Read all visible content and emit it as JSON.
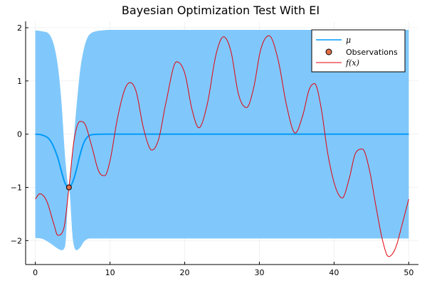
{
  "chart_data": {
    "type": "line",
    "title": "Bayesian Optimization Test With EI",
    "xlabel": "",
    "ylabel": "",
    "xlim": [
      -1.3,
      51.3
    ],
    "ylim": [
      -2.45,
      2.12
    ],
    "x_ticks": [
      0,
      10,
      20,
      30,
      40,
      50
    ],
    "x_tick_labels": [
      "0",
      "10",
      "20",
      "30",
      "40",
      "50"
    ],
    "y_ticks": [
      -2,
      -1,
      0,
      1,
      2
    ],
    "y_tick_labels": [
      "−2",
      "−1",
      "0",
      "1",
      "2"
    ],
    "grid": true,
    "legend_position": "top-right",
    "colors": {
      "mu": "#009AFA",
      "band": "#80C8FB",
      "observations": "#E26F46",
      "f": "#E3000B"
    },
    "legend": {
      "mu": "μ",
      "observations": "Observations",
      "f": "f(x)"
    },
    "series": [
      {
        "name": "μ",
        "type": "line",
        "x": [
          0,
          1,
          2,
          3,
          3.5,
          4,
          4.5,
          5,
          5.5,
          6,
          6.5,
          7,
          8,
          10,
          50
        ],
        "y": [
          0,
          -0.02,
          -0.12,
          -0.44,
          -0.7,
          -0.93,
          -1.0,
          -0.9,
          -0.67,
          -0.38,
          -0.16,
          -0.05,
          -0.005,
          0,
          0
        ]
      },
      {
        "name": "confidence band",
        "type": "area",
        "x": [
          0,
          1,
          2,
          3,
          3.5,
          4,
          4.5,
          5,
          5.5,
          6,
          6.5,
          7,
          7.5,
          8,
          9,
          10,
          50
        ],
        "upper": [
          1.95,
          1.93,
          1.85,
          1.3,
          0.6,
          -0.45,
          -0.99,
          -0.3,
          0.5,
          1.2,
          1.6,
          1.82,
          1.9,
          1.93,
          1.95,
          1.96,
          1.96
        ],
        "lower": [
          -1.95,
          -1.97,
          -2.05,
          -2.15,
          -2.18,
          -2.1,
          -1.01,
          -1.95,
          -2.18,
          -2.13,
          -2.02,
          -1.97,
          -1.96,
          -1.96,
          -1.96,
          -1.96,
          -1.96
        ]
      },
      {
        "name": "Observations",
        "type": "scatter",
        "x": [
          4.5
        ],
        "y": [
          -1.0
        ]
      },
      {
        "name": "f(x)",
        "type": "line",
        "x": [
          0,
          0.6,
          1.5,
          2.5,
          3.0,
          3.8,
          4.5,
          5.2,
          6.0,
          6.6,
          7.5,
          8.5,
          9.3,
          10.0,
          11.0,
          12.0,
          12.7,
          13.5,
          14.5,
          15.6,
          16.5,
          17.5,
          18.9,
          20.0,
          21.0,
          21.9,
          23.0,
          24.2,
          25.2,
          26.2,
          27.2,
          28.3,
          29.2,
          30.2,
          31.3,
          32.5,
          33.7,
          34.8,
          35.8,
          36.7,
          37.4,
          38.2,
          39.2,
          40.2,
          41.1,
          42.0,
          42.9,
          43.8,
          44.7,
          45.6,
          46.5,
          47.3,
          48.2,
          49.2,
          50.0
        ],
        "y": [
          -1.22,
          -1.12,
          -1.25,
          -1.7,
          -1.9,
          -1.78,
          -1.0,
          -0.1,
          0.24,
          0.2,
          -0.2,
          -0.7,
          -0.78,
          -0.5,
          0.3,
          0.85,
          0.97,
          0.8,
          0.1,
          -0.3,
          -0.1,
          0.6,
          1.36,
          1.15,
          0.45,
          0.12,
          0.55,
          1.5,
          1.83,
          1.55,
          0.75,
          0.5,
          0.85,
          1.6,
          1.85,
          1.4,
          0.5,
          0.02,
          0.35,
          0.85,
          0.95,
          0.55,
          -0.4,
          -1.0,
          -1.2,
          -0.85,
          -0.35,
          -0.28,
          -0.65,
          -1.35,
          -2.0,
          -2.3,
          -2.15,
          -1.65,
          -1.22
        ]
      }
    ]
  }
}
